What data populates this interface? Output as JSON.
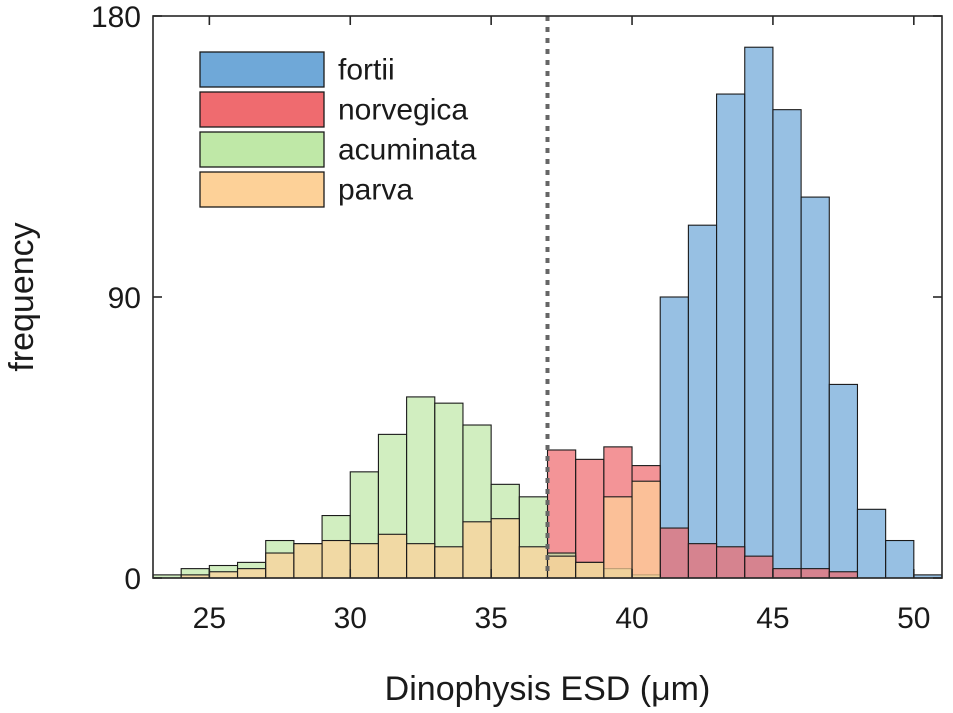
{
  "chart_data": {
    "type": "bar",
    "histogram": true,
    "title": "",
    "xlabel": "Dinophysis ESD (μm)",
    "ylabel": "frequency",
    "xlim": [
      23,
      51
    ],
    "ylim": [
      0,
      180
    ],
    "xticks": [
      25,
      30,
      35,
      40,
      45,
      50
    ],
    "yticks": [
      0,
      90,
      180
    ],
    "grid": false,
    "legend_position": "top-left",
    "threshold_line": {
      "x": 37,
      "style": "dotted"
    },
    "bin_width": 1,
    "series": [
      {
        "name": "fortii",
        "color": "#6fa8d8",
        "bins": [
          {
            "x": 41.5,
            "y": 90
          },
          {
            "x": 42.5,
            "y": 113
          },
          {
            "x": 43.5,
            "y": 155
          },
          {
            "x": 44.5,
            "y": 170
          },
          {
            "x": 45.5,
            "y": 150
          },
          {
            "x": 46.5,
            "y": 122
          },
          {
            "x": 47.5,
            "y": 62
          },
          {
            "x": 48.5,
            "y": 22
          },
          {
            "x": 49.5,
            "y": 12
          },
          {
            "x": 50.5,
            "y": 1
          }
        ]
      },
      {
        "name": "norvegica",
        "color": "#ef6b6f",
        "bins": [
          {
            "x": 37.5,
            "y": 41
          },
          {
            "x": 38.5,
            "y": 38
          },
          {
            "x": 39.5,
            "y": 42
          },
          {
            "x": 40.5,
            "y": 36
          },
          {
            "x": 41.5,
            "y": 16
          },
          {
            "x": 42.5,
            "y": 11
          },
          {
            "x": 43.5,
            "y": 10
          },
          {
            "x": 44.5,
            "y": 7
          },
          {
            "x": 45.5,
            "y": 3
          },
          {
            "x": 46.5,
            "y": 3
          },
          {
            "x": 47.5,
            "y": 2
          }
        ]
      },
      {
        "name": "acuminata",
        "color": "#bfe8a7",
        "bins": [
          {
            "x": 23.5,
            "y": 1
          },
          {
            "x": 24.5,
            "y": 3
          },
          {
            "x": 25.5,
            "y": 4
          },
          {
            "x": 26.5,
            "y": 5
          },
          {
            "x": 27.5,
            "y": 12
          },
          {
            "x": 28.5,
            "y": 11
          },
          {
            "x": 29.5,
            "y": 20
          },
          {
            "x": 30.5,
            "y": 34
          },
          {
            "x": 31.5,
            "y": 46
          },
          {
            "x": 32.5,
            "y": 58
          },
          {
            "x": 33.5,
            "y": 56
          },
          {
            "x": 34.5,
            "y": 49
          },
          {
            "x": 35.5,
            "y": 30
          },
          {
            "x": 36.5,
            "y": 26
          },
          {
            "x": 37.5,
            "y": 8
          },
          {
            "x": 38.5,
            "y": 5
          },
          {
            "x": 39.5,
            "y": 3
          },
          {
            "x": 40.5,
            "y": 1
          }
        ]
      },
      {
        "name": "parva",
        "color": "#fdd198",
        "bins": [
          {
            "x": 24.5,
            "y": 1
          },
          {
            "x": 25.5,
            "y": 2
          },
          {
            "x": 26.5,
            "y": 3
          },
          {
            "x": 27.5,
            "y": 8
          },
          {
            "x": 28.5,
            "y": 11
          },
          {
            "x": 29.5,
            "y": 12
          },
          {
            "x": 30.5,
            "y": 11
          },
          {
            "x": 31.5,
            "y": 14
          },
          {
            "x": 32.5,
            "y": 11
          },
          {
            "x": 33.5,
            "y": 10
          },
          {
            "x": 34.5,
            "y": 18
          },
          {
            "x": 35.5,
            "y": 19
          },
          {
            "x": 36.5,
            "y": 10
          },
          {
            "x": 37.5,
            "y": 7
          },
          {
            "x": 38.5,
            "y": 5
          },
          {
            "x": 39.5,
            "y": 26
          },
          {
            "x": 40.5,
            "y": 31
          }
        ]
      }
    ]
  }
}
